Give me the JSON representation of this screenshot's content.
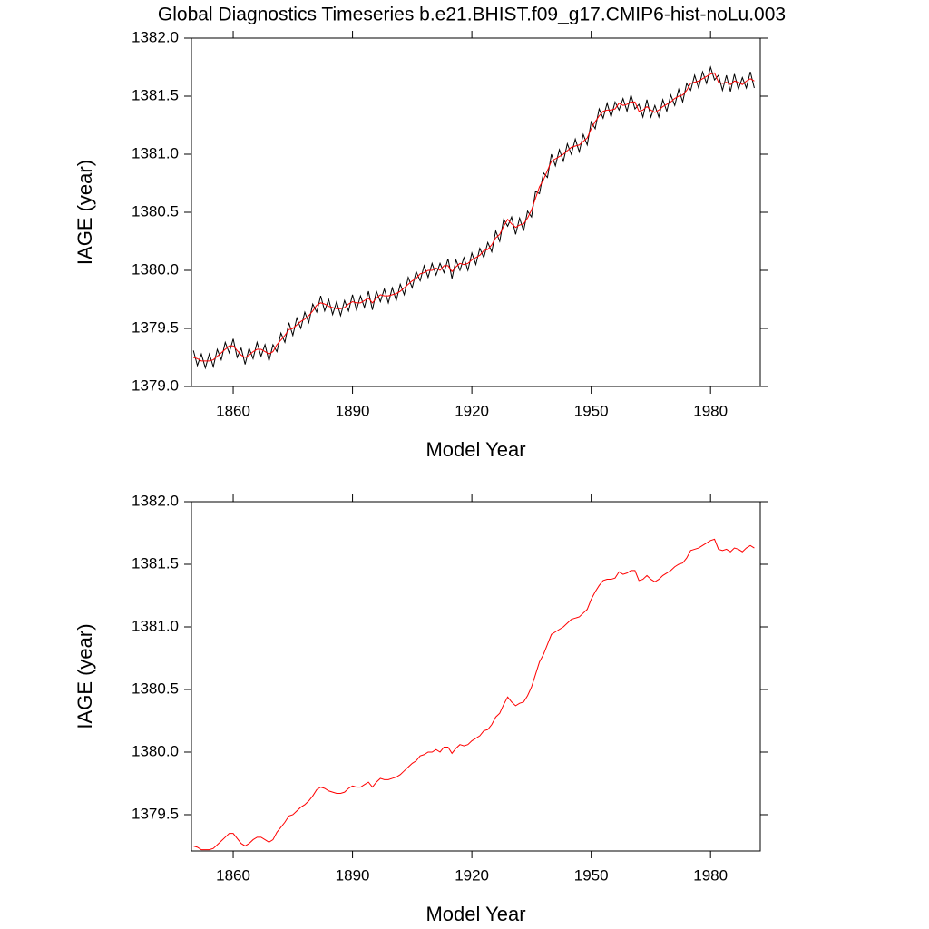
{
  "chart_data": [
    {
      "type": "line",
      "title": "Global Diagnostics Timeseries b.e21.BHIST.f09_g17.CMIP6-hist-noLu.003",
      "xlabel": "Model Year",
      "ylabel": "IAGE (year)",
      "xlim": [
        1849.5,
        1992.5
      ],
      "xticks": [
        1860,
        1890,
        1920,
        1950,
        1980
      ],
      "ylim": [
        1379,
        1382
      ],
      "yticks": [
        {
          "value": 1379,
          "label": "1379.0"
        },
        1379.5,
        {
          "value": 1380,
          "label": "1380.0"
        },
        1380.5,
        {
          "value": 1381,
          "label": "1381.0"
        },
        1381.5,
        {
          "value": 1382,
          "label": "1382.0"
        }
      ],
      "x": [
        1850,
        1851,
        1852,
        1853,
        1854,
        1855,
        1856,
        1857,
        1858,
        1859,
        1860,
        1861,
        1862,
        1863,
        1864,
        1865,
        1866,
        1867,
        1868,
        1869,
        1870,
        1871,
        1872,
        1873,
        1874,
        1875,
        1876,
        1877,
        1878,
        1879,
        1880,
        1881,
        1882,
        1883,
        1884,
        1885,
        1886,
        1887,
        1888,
        1889,
        1890,
        1891,
        1892,
        1893,
        1894,
        1895,
        1896,
        1897,
        1898,
        1899,
        1900,
        1901,
        1902,
        1903,
        1904,
        1905,
        1906,
        1907,
        1908,
        1909,
        1910,
        1911,
        1912,
        1913,
        1914,
        1915,
        1916,
        1917,
        1918,
        1919,
        1920,
        1921,
        1922,
        1923,
        1924,
        1925,
        1926,
        1927,
        1928,
        1929,
        1930,
        1931,
        1932,
        1933,
        1934,
        1935,
        1936,
        1937,
        1938,
        1939,
        1940,
        1941,
        1942,
        1943,
        1944,
        1945,
        1946,
        1947,
        1948,
        1949,
        1950,
        1951,
        1952,
        1953,
        1954,
        1955,
        1956,
        1957,
        1958,
        1959,
        1960,
        1961,
        1962,
        1963,
        1964,
        1965,
        1966,
        1967,
        1968,
        1969,
        1970,
        1971,
        1972,
        1973,
        1974,
        1975,
        1976,
        1977,
        1978,
        1979,
        1980,
        1981,
        1982,
        1983,
        1984,
        1985,
        1986,
        1987,
        1988,
        1989,
        1990,
        1991
      ],
      "series": [
        {
          "color": "#000000",
          "values": [
            1379.31,
            1379.18,
            1379.28,
            1379.16,
            1379.28,
            1379.17,
            1379.32,
            1379.23,
            1379.38,
            1379.29,
            1379.41,
            1379.25,
            1379.33,
            1379.19,
            1379.33,
            1379.24,
            1379.38,
            1379.26,
            1379.36,
            1379.22,
            1379.36,
            1379.3,
            1379.46,
            1379.38,
            1379.55,
            1379.44,
            1379.59,
            1379.5,
            1379.64,
            1379.55,
            1379.71,
            1379.64,
            1379.78,
            1379.65,
            1379.75,
            1379.62,
            1379.73,
            1379.61,
            1379.74,
            1379.65,
            1379.79,
            1379.66,
            1379.78,
            1379.68,
            1379.82,
            1379.66,
            1379.82,
            1379.73,
            1379.84,
            1379.72,
            1379.85,
            1379.74,
            1379.88,
            1379.79,
            1379.94,
            1379.85,
            1379.99,
            1379.91,
            1380.04,
            1379.94,
            1380.06,
            1379.96,
            1380.06,
            1379.98,
            1380.1,
            1379.93,
            1380.09,
            1380.0,
            1380.11,
            1380.0,
            1380.15,
            1380.05,
            1380.19,
            1380.11,
            1380.24,
            1380.16,
            1380.34,
            1380.25,
            1380.44,
            1380.38,
            1380.46,
            1380.31,
            1380.45,
            1380.34,
            1380.51,
            1380.46,
            1380.68,
            1380.66,
            1380.84,
            1380.8,
            1381.0,
            1380.9,
            1381.04,
            1380.94,
            1381.09,
            1381.0,
            1381.13,
            1381.02,
            1381.17,
            1381.08,
            1381.28,
            1381.22,
            1381.39,
            1381.31,
            1381.44,
            1381.32,
            1381.45,
            1381.38,
            1381.48,
            1381.37,
            1381.51,
            1381.39,
            1381.43,
            1381.32,
            1381.47,
            1381.32,
            1381.42,
            1381.32,
            1381.47,
            1381.37,
            1381.51,
            1381.42,
            1381.56,
            1381.45,
            1381.61,
            1381.55,
            1381.68,
            1381.57,
            1381.71,
            1381.61,
            1381.75,
            1381.64,
            1381.68,
            1381.55,
            1381.68,
            1381.54,
            1381.69,
            1381.56,
            1381.66,
            1381.57,
            1381.71,
            1381.57
          ]
        },
        {
          "color": "#ff0000",
          "values": [
            1379.25,
            1379.24,
            1379.22,
            1379.22,
            1379.22,
            1379.23,
            1379.26,
            1379.29,
            1379.32,
            1379.35,
            1379.35,
            1379.31,
            1379.27,
            1379.25,
            1379.27,
            1379.3,
            1379.32,
            1379.32,
            1379.3,
            1379.28,
            1379.3,
            1379.36,
            1379.4,
            1379.44,
            1379.49,
            1379.5,
            1379.53,
            1379.56,
            1379.58,
            1379.61,
            1379.65,
            1379.7,
            1379.72,
            1379.71,
            1379.69,
            1379.68,
            1379.67,
            1379.67,
            1379.68,
            1379.71,
            1379.73,
            1379.72,
            1379.72,
            1379.74,
            1379.76,
            1379.72,
            1379.76,
            1379.79,
            1379.78,
            1379.78,
            1379.79,
            1379.8,
            1379.82,
            1379.85,
            1379.88,
            1379.91,
            1379.93,
            1379.97,
            1379.98,
            1380.0,
            1380.0,
            1380.02,
            1380.0,
            1380.04,
            1380.04,
            1379.99,
            1380.03,
            1380.06,
            1380.05,
            1380.06,
            1380.09,
            1380.11,
            1380.13,
            1380.17,
            1380.18,
            1380.22,
            1380.28,
            1380.31,
            1380.38,
            1380.44,
            1380.4,
            1380.37,
            1380.39,
            1380.4,
            1380.45,
            1380.52,
            1380.62,
            1380.72,
            1380.78,
            1380.86,
            1380.94,
            1380.96,
            1380.98,
            1381.0,
            1381.03,
            1381.06,
            1381.07,
            1381.08,
            1381.11,
            1381.14,
            1381.22,
            1381.28,
            1381.33,
            1381.37,
            1381.38,
            1381.38,
            1381.39,
            1381.44,
            1381.42,
            1381.43,
            1381.45,
            1381.45,
            1381.37,
            1381.38,
            1381.41,
            1381.38,
            1381.36,
            1381.38,
            1381.41,
            1381.43,
            1381.45,
            1381.48,
            1381.5,
            1381.51,
            1381.55,
            1381.61,
            1381.62,
            1381.63,
            1381.65,
            1381.67,
            1381.69,
            1381.7,
            1381.62,
            1381.61,
            1381.62,
            1381.6,
            1381.63,
            1381.62,
            1381.6,
            1381.63,
            1381.65,
            1381.63
          ]
        }
      ]
    },
    {
      "type": "line",
      "xlabel": "Model Year",
      "ylabel": "IAGE (year)",
      "xlim": [
        1849.5,
        1992.5
      ],
      "xticks": [
        1860,
        1890,
        1920,
        1950,
        1980
      ],
      "ylim": [
        1379.21,
        1382
      ],
      "yticks": [
        1379.5,
        {
          "value": 1380,
          "label": "1380.0"
        },
        1380.5,
        {
          "value": 1381,
          "label": "1381.0"
        },
        1381.5,
        {
          "value": 1382,
          "label": "1382.0"
        }
      ],
      "x": [
        1850,
        1851,
        1852,
        1853,
        1854,
        1855,
        1856,
        1857,
        1858,
        1859,
        1860,
        1861,
        1862,
        1863,
        1864,
        1865,
        1866,
        1867,
        1868,
        1869,
        1870,
        1871,
        1872,
        1873,
        1874,
        1875,
        1876,
        1877,
        1878,
        1879,
        1880,
        1881,
        1882,
        1883,
        1884,
        1885,
        1886,
        1887,
        1888,
        1889,
        1890,
        1891,
        1892,
        1893,
        1894,
        1895,
        1896,
        1897,
        1898,
        1899,
        1900,
        1901,
        1902,
        1903,
        1904,
        1905,
        1906,
        1907,
        1908,
        1909,
        1910,
        1911,
        1912,
        1913,
        1914,
        1915,
        1916,
        1917,
        1918,
        1919,
        1920,
        1921,
        1922,
        1923,
        1924,
        1925,
        1926,
        1927,
        1928,
        1929,
        1930,
        1931,
        1932,
        1933,
        1934,
        1935,
        1936,
        1937,
        1938,
        1939,
        1940,
        1941,
        1942,
        1943,
        1944,
        1945,
        1946,
        1947,
        1948,
        1949,
        1950,
        1951,
        1952,
        1953,
        1954,
        1955,
        1956,
        1957,
        1958,
        1959,
        1960,
        1961,
        1962,
        1963,
        1964,
        1965,
        1966,
        1967,
        1968,
        1969,
        1970,
        1971,
        1972,
        1973,
        1974,
        1975,
        1976,
        1977,
        1978,
        1979,
        1980,
        1981,
        1982,
        1983,
        1984,
        1985,
        1986,
        1987,
        1988,
        1989,
        1990,
        1991
      ],
      "series": [
        {
          "color": "#ff0000",
          "values": [
            1379.25,
            1379.24,
            1379.22,
            1379.22,
            1379.22,
            1379.23,
            1379.26,
            1379.29,
            1379.32,
            1379.35,
            1379.35,
            1379.31,
            1379.27,
            1379.25,
            1379.27,
            1379.3,
            1379.32,
            1379.32,
            1379.3,
            1379.28,
            1379.3,
            1379.36,
            1379.4,
            1379.44,
            1379.49,
            1379.5,
            1379.53,
            1379.56,
            1379.58,
            1379.61,
            1379.65,
            1379.7,
            1379.72,
            1379.71,
            1379.69,
            1379.68,
            1379.67,
            1379.67,
            1379.68,
            1379.71,
            1379.73,
            1379.72,
            1379.72,
            1379.74,
            1379.76,
            1379.72,
            1379.76,
            1379.79,
            1379.78,
            1379.78,
            1379.79,
            1379.8,
            1379.82,
            1379.85,
            1379.88,
            1379.91,
            1379.93,
            1379.97,
            1379.98,
            1380.0,
            1380.0,
            1380.02,
            1380.0,
            1380.04,
            1380.04,
            1379.99,
            1380.03,
            1380.06,
            1380.05,
            1380.06,
            1380.09,
            1380.11,
            1380.13,
            1380.17,
            1380.18,
            1380.22,
            1380.28,
            1380.31,
            1380.38,
            1380.44,
            1380.4,
            1380.37,
            1380.39,
            1380.4,
            1380.45,
            1380.52,
            1380.62,
            1380.72,
            1380.78,
            1380.86,
            1380.94,
            1380.96,
            1380.98,
            1381.0,
            1381.03,
            1381.06,
            1381.07,
            1381.08,
            1381.11,
            1381.14,
            1381.22,
            1381.28,
            1381.33,
            1381.37,
            1381.38,
            1381.38,
            1381.39,
            1381.44,
            1381.42,
            1381.43,
            1381.45,
            1381.45,
            1381.37,
            1381.38,
            1381.41,
            1381.38,
            1381.36,
            1381.38,
            1381.41,
            1381.43,
            1381.45,
            1381.48,
            1381.5,
            1381.51,
            1381.55,
            1381.61,
            1381.62,
            1381.63,
            1381.65,
            1381.67,
            1381.69,
            1381.7,
            1381.62,
            1381.61,
            1381.62,
            1381.6,
            1381.63,
            1381.62,
            1381.6,
            1381.63,
            1381.65,
            1381.63
          ]
        }
      ]
    }
  ]
}
